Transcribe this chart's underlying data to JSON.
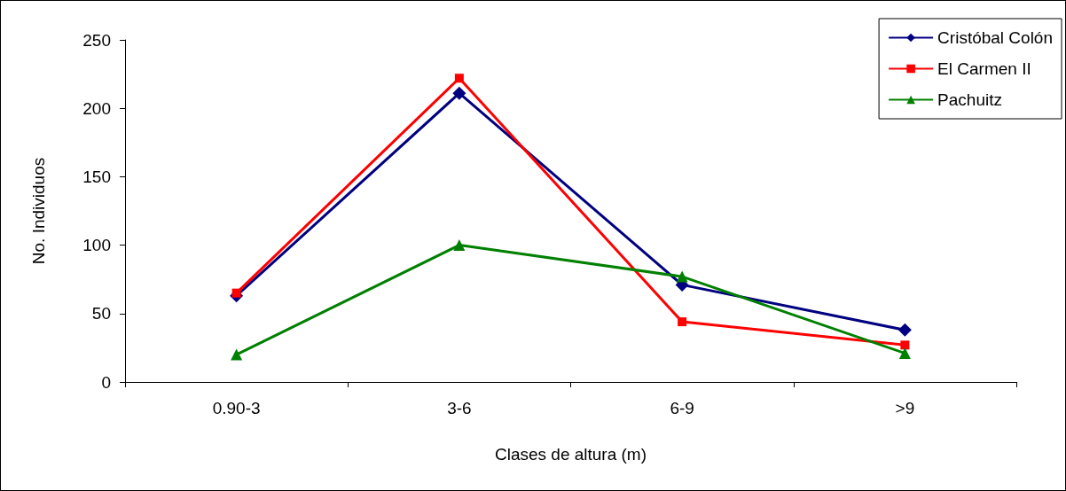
{
  "chart_data": {
    "type": "line",
    "xlabel": "Clases de altura (m)",
    "ylabel": "No. Individuos",
    "categories": [
      "0.90-3",
      "3-6",
      "6-9",
      ">9"
    ],
    "series": [
      {
        "name": "Cristóbal Colón",
        "color": "#000080",
        "marker": "diamond",
        "values": [
          63,
          211,
          71,
          38
        ]
      },
      {
        "name": "El Carmen II",
        "color": "#ff0000",
        "marker": "square",
        "values": [
          65,
          222,
          44,
          27
        ]
      },
      {
        "name": "Pachuitz",
        "color": "#008000",
        "marker": "triangle",
        "values": [
          20,
          100,
          77,
          21
        ]
      }
    ],
    "ylim": [
      0,
      250
    ],
    "yticks": [
      0,
      50,
      100,
      150,
      200,
      250
    ],
    "grid": false,
    "legend": "top right",
    "line_style": "solid"
  }
}
